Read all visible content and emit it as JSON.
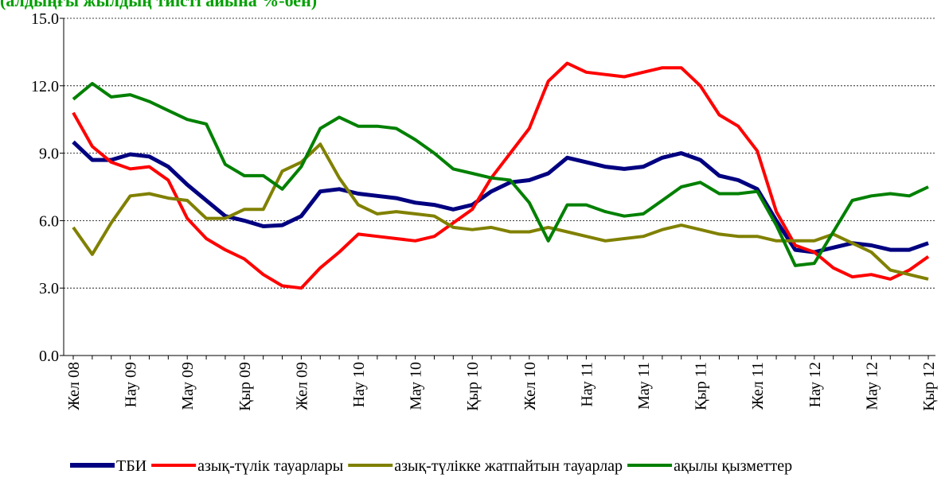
{
  "chart_data": {
    "type": "line",
    "title": "(алдыңғы жылдың тиісті айына %-бен)",
    "categories": [
      "Жел 08",
      null,
      null,
      "Нау 09",
      null,
      null,
      "Мау 09",
      null,
      null,
      "Қыр 09",
      null,
      null,
      "Жел 09",
      null,
      null,
      "Нау 10",
      null,
      null,
      "Мау 10",
      null,
      null,
      "Қыр 10",
      null,
      null,
      "Жел 10",
      null,
      null,
      "Нау 11",
      null,
      null,
      "Мау 11",
      null,
      null,
      "Қыр 11",
      null,
      null,
      "Жел 11",
      null,
      null,
      "Нау 12",
      null,
      null,
      "Мау 12",
      null,
      null,
      "Қыр 12"
    ],
    "series": [
      {
        "name": "ТБИ",
        "color": "#000080",
        "values": [
          9.5,
          8.7,
          8.7,
          8.95,
          8.85,
          8.4,
          7.6,
          6.9,
          6.2,
          6.0,
          5.75,
          5.8,
          6.2,
          7.3,
          7.4,
          7.2,
          7.1,
          7.0,
          6.8,
          6.7,
          6.5,
          6.7,
          7.3,
          7.7,
          7.8,
          8.1,
          8.8,
          8.6,
          8.4,
          8.3,
          8.4,
          8.8,
          9.0,
          8.7,
          8.0,
          7.8,
          7.4,
          6.0,
          4.7,
          4.6,
          4.8,
          5.0,
          4.9,
          4.7,
          4.7,
          5.0
        ]
      },
      {
        "name": "азық-түлік тауарлары",
        "color": "#ff0000",
        "values": [
          10.8,
          9.3,
          8.6,
          8.3,
          8.4,
          7.8,
          6.1,
          5.2,
          4.7,
          4.3,
          3.6,
          3.1,
          3.0,
          3.9,
          4.6,
          5.4,
          5.3,
          5.2,
          5.1,
          5.3,
          5.9,
          6.5,
          7.9,
          9.0,
          10.1,
          12.2,
          13.0,
          12.6,
          12.5,
          12.4,
          12.6,
          12.8,
          12.8,
          12.0,
          10.7,
          10.2,
          9.1,
          6.4,
          4.9,
          4.6,
          3.9,
          3.5,
          3.6,
          3.4,
          3.8,
          4.4
        ]
      },
      {
        "name": "азық-түлікке жатпайтын тауарлар",
        "color": "#808000",
        "values": [
          5.7,
          4.5,
          5.9,
          7.1,
          7.2,
          7.0,
          6.9,
          6.1,
          6.1,
          6.5,
          6.5,
          8.2,
          8.6,
          9.4,
          7.9,
          6.7,
          6.3,
          6.4,
          6.3,
          6.2,
          5.7,
          5.6,
          5.7,
          5.5,
          5.5,
          5.7,
          5.5,
          5.3,
          5.1,
          5.2,
          5.3,
          5.6,
          5.8,
          5.6,
          5.4,
          5.3,
          5.3,
          5.1,
          5.1,
          5.1,
          5.4,
          5.0,
          4.6,
          3.8,
          3.6,
          3.4
        ]
      },
      {
        "name": "ақылы қызметтер",
        "color": "#008000",
        "values": [
          11.4,
          12.1,
          11.5,
          11.6,
          11.3,
          10.9,
          10.5,
          10.3,
          8.5,
          8.0,
          8.0,
          7.4,
          8.4,
          10.1,
          10.6,
          10.2,
          10.2,
          10.1,
          9.6,
          9.0,
          8.3,
          8.1,
          7.9,
          7.8,
          6.8,
          5.1,
          6.7,
          6.7,
          6.4,
          6.2,
          6.3,
          6.9,
          7.5,
          7.7,
          7.2,
          7.2,
          7.3,
          5.8,
          4.0,
          4.1,
          5.5,
          6.9,
          7.1,
          7.2,
          7.1,
          7.5
        ]
      }
    ],
    "ylim": [
      0,
      15
    ],
    "yticks": [
      {
        "value": 0,
        "label": "0.0"
      },
      {
        "value": 3,
        "label": "3.0"
      },
      {
        "value": 6,
        "label": "6.0"
      },
      {
        "value": 9,
        "label": "9.0"
      },
      {
        "value": 12,
        "label": "12.0"
      },
      {
        "value": 15,
        "label": "15.0"
      }
    ],
    "grid": true,
    "legend": "bottom"
  }
}
